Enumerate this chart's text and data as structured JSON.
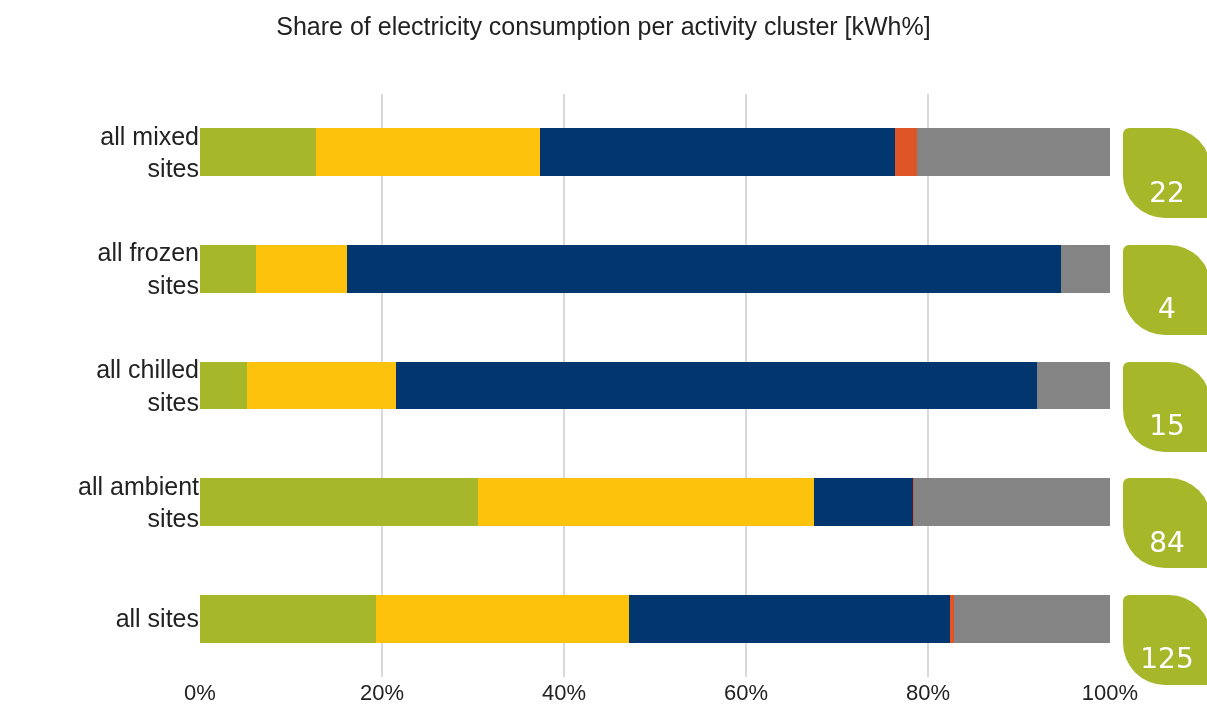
{
  "chart_data": {
    "type": "bar",
    "orientation": "horizontal",
    "stacked": true,
    "title": "Share of electricity consumption per activity cluster [kWh%]",
    "categories": [
      "all mixed sites",
      "all frozen sites",
      "all chilled sites",
      "all ambient sites",
      "all sites"
    ],
    "series": [
      {
        "color": "#a7b72a",
        "values": [
          12.8,
          6.1,
          5.2,
          30.5,
          19.3
        ]
      },
      {
        "color": "#fdc20b",
        "values": [
          24.6,
          10.0,
          16.3,
          37.0,
          27.8
        ]
      },
      {
        "color": "#02366e",
        "values": [
          39.0,
          78.5,
          70.5,
          10.8,
          35.3
        ]
      },
      {
        "color": "#e05528",
        "values": [
          2.4,
          0,
          0,
          0.2,
          0.5
        ]
      },
      {
        "color": "#848484",
        "values": [
          21.2,
          5.4,
          8.0,
          21.5,
          17.1
        ]
      }
    ],
    "xlim": [
      0,
      100
    ],
    "xticks": [
      {
        "value": 0,
        "label": "0%"
      },
      {
        "value": 20,
        "label": "20%"
      },
      {
        "value": 40,
        "label": "40%"
      },
      {
        "value": 60,
        "label": "60%"
      },
      {
        "value": 80,
        "label": "80%"
      },
      {
        "value": 100,
        "label": "100%"
      }
    ],
    "grid": "x",
    "annotations": [
      "22",
      "4",
      "15",
      "84",
      "125"
    ]
  }
}
